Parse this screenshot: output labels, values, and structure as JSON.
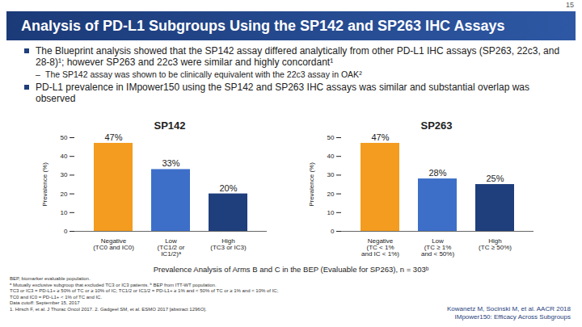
{
  "header": {
    "title": "Analysis of PD-L1 Subgroups Using the SP142 and SP263 IHC Assays",
    "page_number": "15"
  },
  "bullets": [
    {
      "text": "The Blueprint analysis showed that the SP142 assay differed analytically from other PD-L1 IHC assays (SP263, 22c3, and 28-8)¹; however SP263 and 22c3 were similar and highly concordant¹",
      "sub": [
        "The SP142 assay was shown to be clinically equivalent with the 22c3 assay in OAK²"
      ]
    },
    {
      "text": "PD-L1 prevalence in IMpower150 using the SP142 and SP263 IHC assays was similar and substantial overlap was observed",
      "sub": []
    }
  ],
  "chart_data": [
    {
      "type": "bar",
      "title": "SP142",
      "ylabel": "Prevalence (%)",
      "categories": [
        "Negative\n(TC0 and IC0)",
        "Low\n(TC1/2 or\nIC1/2)ᵃ",
        "High\n(TC3 or IC3)"
      ],
      "values": [
        47,
        33,
        20
      ],
      "value_labels": [
        "47%",
        "33%",
        "20%"
      ],
      "colors": [
        "#f39c1f",
        "#3d6fc9",
        "#1f3e7c"
      ],
      "ylim": [
        0,
        50
      ],
      "yticks": [
        0,
        10,
        20,
        30,
        40,
        50
      ],
      "data_labels": true
    },
    {
      "type": "bar",
      "title": "SP263",
      "ylabel": "Prevalence (%)",
      "categories": [
        "Negative\n(TC < 1%\nand IC < 1%)",
        "Low\n(TC ≥ 1%\nand < 50%)",
        "High\n(TC ≥ 50%)"
      ],
      "values": [
        47,
        28,
        25
      ],
      "value_labels": [
        "47%",
        "28%",
        "25%"
      ],
      "colors": [
        "#f39c1f",
        "#3d6fc9",
        "#1f3e7c"
      ],
      "ylim": [
        0,
        50
      ],
      "yticks": [
        0,
        10,
        20,
        30,
        40,
        50
      ],
      "data_labels": true
    }
  ],
  "caption": "Prevalence Analysis of Arms B and C in the BEP (Evaluable for SP263), n = 303ᵇ",
  "footnotes": [
    "BEP, biomarker evaluable population.",
    "ᵃ Mutually exclusive subgroup that excluded TC3 or IC3 patients. ᵇ BEP from ITT-WT population.",
    "TC3 or IC3 = PD-L1+ ≥ 50% of TC or ≥ 10% of IC; TC1/2 or IC1/2 = PD-L1+ ≥ 1% and < 50% of TC or ≥ 1% and < 10% of IC;",
    "TC0 and IC0 = PD-L1+ < 1% of TC and IC.",
    "Data cutoff: September 15, 2017",
    "1. Hirsch F, et al. J Thorac Oncol 2017. 2. Gadgeel SM, et al. ESMO 2017 [abstract 1296O]."
  ],
  "citation": [
    "Kowanetz M, Socinski M, et al. AACR 2018",
    "IMpower150: Efficacy Across Subgroups"
  ]
}
